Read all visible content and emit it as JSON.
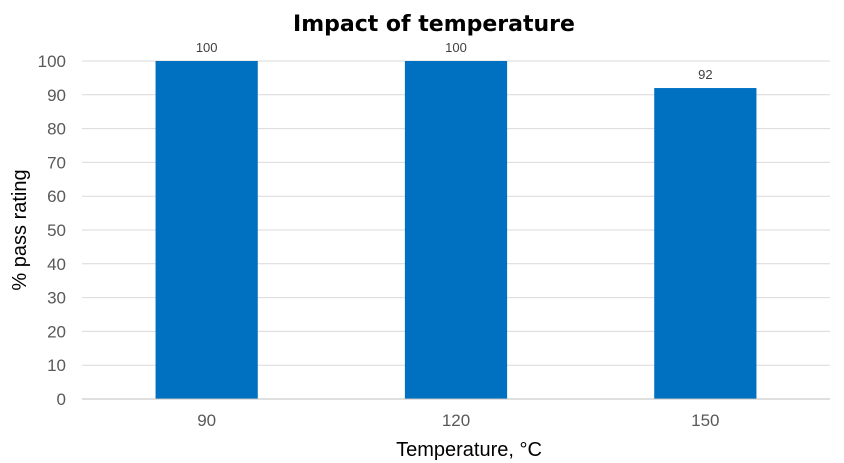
{
  "chart_data": {
    "type": "bar",
    "title": "Impact of temperature",
    "xlabel": "Temperature, °C",
    "ylabel": "% pass rating",
    "categories": [
      "90",
      "120",
      "150"
    ],
    "values": [
      100,
      100,
      92
    ],
    "data_labels": [
      "100",
      "100",
      "92"
    ],
    "ylim": [
      0,
      100
    ],
    "yticks": [
      "0",
      "10",
      "20",
      "30",
      "40",
      "50",
      "60",
      "70",
      "80",
      "90",
      "100"
    ],
    "grid": true,
    "legend": "none",
    "bar_color": "#0070c0"
  }
}
